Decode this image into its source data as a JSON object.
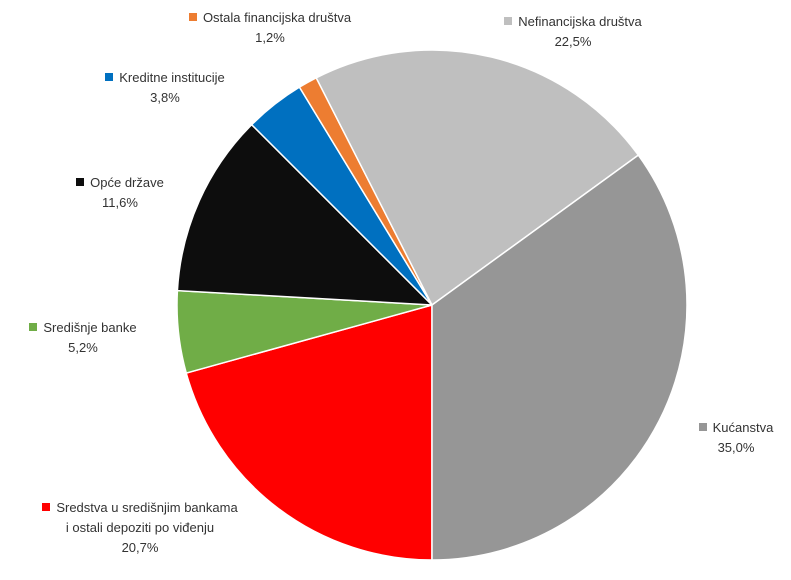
{
  "chart_data": {
    "type": "pie",
    "categories": [
      "Sredstva u središnjim bankama i ostali depoziti po viđenju",
      "Središnje banke",
      "Opće države",
      "Kreditne institucije",
      "Ostala financijska društva",
      "Nefinancijska društva",
      "Kućanstva"
    ],
    "values": [
      20.7,
      5.2,
      11.6,
      3.8,
      1.2,
      22.5,
      35.0
    ],
    "value_labels": [
      "20,7%",
      "5,2%",
      "11,6%",
      "3,8%",
      "1,2%",
      "22,5%",
      "35,0%"
    ],
    "colors": [
      "#ff0000",
      "#70ad47",
      "#0d0d0d",
      "#0070c0",
      "#ed7d31",
      "#bfbfbf",
      "#969696"
    ]
  }
}
